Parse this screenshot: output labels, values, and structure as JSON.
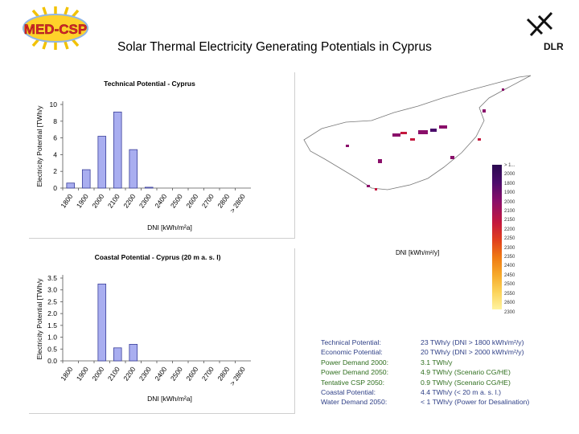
{
  "header": {
    "title": "Solar Thermal Electricity Generating Potentials in Cyprus",
    "logo_left": "MED-CSP",
    "logo_right": "DLR"
  },
  "colors": {
    "bar_fill": "#a9aef0",
    "bar_stroke": "#3a3f9a",
    "summary_blue": "#2e3f86",
    "summary_green": "#2f6e1e"
  },
  "chart_data": [
    {
      "type": "bar",
      "title": "Technical Potential - Cyprus",
      "xlabel": "DNI [kWh/m²a]",
      "ylabel": "Electricity Potential [TWh/y",
      "categories": [
        "1800",
        "1900",
        "2000",
        "2100",
        "2200",
        "2300",
        "2400",
        "2500",
        "2600",
        "2700",
        "2800",
        "> 2800"
      ],
      "values": [
        0.6,
        2.2,
        6.2,
        9.1,
        4.6,
        0.1,
        0,
        0,
        0,
        0,
        0,
        0
      ],
      "yticks": [
        "0",
        "2",
        "4",
        "6",
        "8",
        "10"
      ],
      "ylim": [
        0,
        10
      ],
      "grid": false
    },
    {
      "type": "bar",
      "title": "Coastal Potential - Cyprus (20 m a. s. l)",
      "xlabel": "DNI [kWh/m²a]",
      "ylabel": "Electricity Potential [TWh/y",
      "categories": [
        "1800",
        "1900",
        "2000",
        "2100",
        "2200",
        "2300",
        "2400",
        "2500",
        "2600",
        "2700",
        "2800",
        "> 2800"
      ],
      "values": [
        0,
        0,
        3.25,
        0.55,
        0.7,
        0,
        0,
        0,
        0,
        0,
        0,
        0
      ],
      "yticks": [
        "0.0",
        "0.5",
        "1.0",
        "1.5",
        "2.0",
        "2.5",
        "3.0",
        "3.5"
      ],
      "ylim": [
        0,
        3.5
      ],
      "grid": false
    }
  ],
  "map": {
    "legend_label": "DNI [kWh/m²/y]",
    "legend_ticks": [
      "> 1...",
      "2000",
      "1800",
      "1900",
      "2000",
      "2100",
      "2150",
      "2200",
      "2250",
      "2300",
      "2350",
      "2400",
      "2450",
      "2500",
      "2550",
      "2600",
      "2300"
    ]
  },
  "summary": {
    "rows": [
      {
        "label": "Technical Potential:",
        "value": "23 TWh/y (DNI > 1800 kWh/m²/y)"
      },
      {
        "label": "Economic Potential:",
        "value": "20 TWh/y (DNI > 2000 kWh/m²/y)"
      },
      {
        "label": "Power Demand 2000:",
        "value": "3.1 TWh/y"
      },
      {
        "label": "Power Demand 2050:",
        "value": "4.9 TWh/y (Scenario CG/HE)"
      },
      {
        "label": "Tentative CSP 2050:",
        "value": "0.9 TWh/y (Scenario CG/HE)"
      },
      {
        "label": "Coastal Potential:",
        "value": "4.4 TWh/y (< 20 m a. s. l.)"
      },
      {
        "label": "Water Demand 2050:",
        "value": "< 1 TWh/y (Power for Desalination)"
      }
    ]
  }
}
